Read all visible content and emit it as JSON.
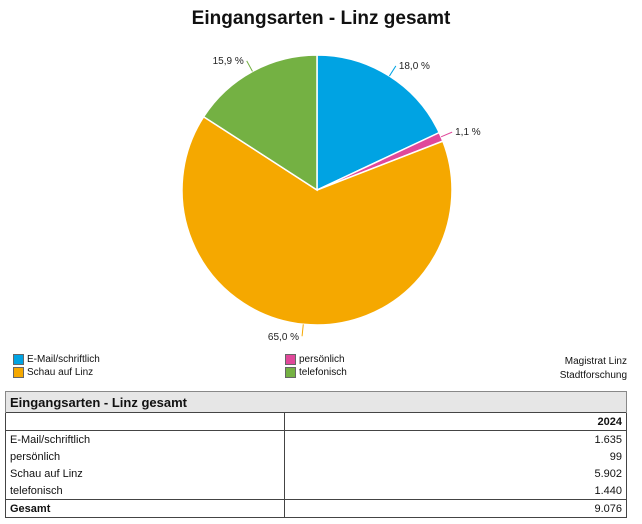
{
  "chart_data": {
    "type": "pie",
    "title": "Eingangsarten - Linz gesamt",
    "slices": [
      {
        "name": "E-Mail/schriftlich",
        "value": 1635,
        "label": "18,0 %",
        "color": "#00a3e3"
      },
      {
        "name": "persönlich",
        "value": 99,
        "label": "1,1 %",
        "color": "#e0489a"
      },
      {
        "name": "Schau auf Linz",
        "value": 5902,
        "label": "65,0 %",
        "color": "#f5a800"
      },
      {
        "name": "telefonisch",
        "value": 1440,
        "label": "15,9 %",
        "color": "#74b143"
      }
    ],
    "legend": [
      "E-Mail/schriftlich",
      "persönlich",
      "Schau auf Linz",
      "telefonisch"
    ]
  },
  "credit": {
    "line1": "Magistrat Linz",
    "line2": "Stadtforschung"
  },
  "table": {
    "caption": "Eingangsarten - Linz gesamt",
    "year": "2024",
    "rows": [
      {
        "label": "E-Mail/schriftlich",
        "value": "1.635"
      },
      {
        "label": "persönlich",
        "value": "99"
      },
      {
        "label": "Schau auf Linz",
        "value": "5.902"
      },
      {
        "label": "telefonisch",
        "value": "1.440"
      }
    ],
    "total": {
      "label": "Gesamt",
      "value": "9.076"
    }
  }
}
